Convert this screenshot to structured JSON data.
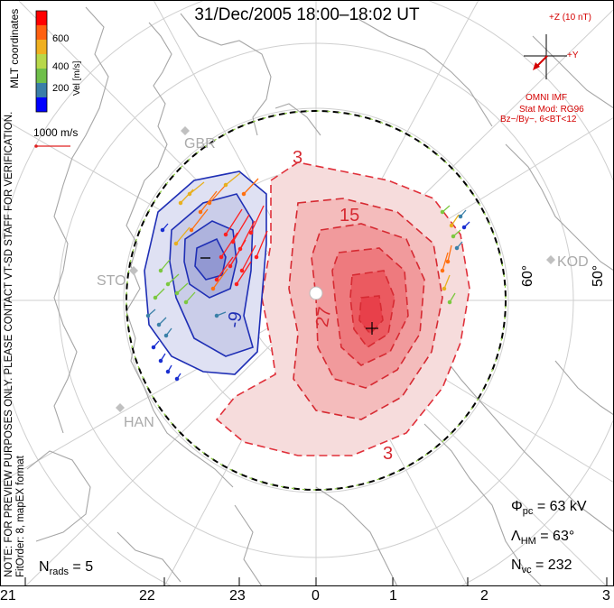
{
  "title": "31/Dec/2005  18:00–18:02  UT",
  "colorbar": {
    "coordinate_label": "MLT coordinates",
    "unit_label": "Vel [m/s]",
    "ticks": [
      "600",
      "400",
      "200"
    ],
    "colors": [
      "#0000ff",
      "#3a7ea8",
      "#6fbf4a",
      "#b8d84a",
      "#f0b020",
      "#ff6010",
      "#ff0000"
    ]
  },
  "reference_vector": "1000 m/s",
  "side_notes": {
    "line1": "NOTE: FOR PREVIEW PURPOSES ONLY. PLEASE CONTACT VT-SD STAFF FOR VERIFICATION.",
    "line2": "FitOrder: 8, mapEX format"
  },
  "imf_panel": {
    "z_label": "+Z (10 nT)",
    "y_label": "+Y",
    "source": "OMNI IMF",
    "stat_mod": "Stat Mod: RG96",
    "bin": "Bz−/By−, 6<BT<12"
  },
  "stations": [
    "GBR",
    "STO",
    "HAN",
    "KOD"
  ],
  "latitude_labels": [
    "60°",
    "50°"
  ],
  "contour_labels": [
    "3",
    "15",
    "27",
    "3",
    "-9",
    "-"
  ],
  "mlt_labels": [
    "21",
    "22",
    "23",
    "0",
    "1",
    "2",
    "3"
  ],
  "stats": {
    "nrads_symbol": "N",
    "nrads_sub": "rads",
    "nrads_value": "= 5",
    "phi_symbol": "Φ",
    "phi_sub": "pc",
    "phi_value": "= 63 kV",
    "lambda_symbol": "Λ",
    "lambda_sub": "HM",
    "lambda_value": "= 63°",
    "nvc_symbol": "N",
    "nvc_sub": "vc",
    "nvc_value": "= 232"
  },
  "colors": {
    "positive_cell": "#e8323c",
    "negative_cell": "#1f2fb5",
    "imf_text": "#d40000",
    "grid": "#cccccc",
    "coastline": "#999999"
  }
}
